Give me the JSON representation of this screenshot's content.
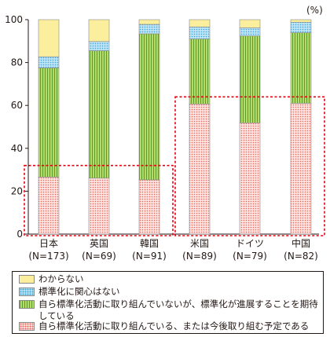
{
  "unit": "(%)",
  "legend": [
    {
      "key": "unknown",
      "label": "わからない"
    },
    {
      "key": "no_interest",
      "label": "標準化に関心はない"
    },
    {
      "key": "expect",
      "label": "自ら標準化活動に取り組んでいないが、標準化が進展することを期待している"
    },
    {
      "key": "active",
      "label": "自ら標準化活動に取り組んでいる、または今後取り組む予定である"
    }
  ],
  "colors": {
    "unknown": "#fbee9c",
    "no_interest": "#bfe4f6",
    "expect": "#b5dc6b",
    "active": "#ffe3e0",
    "dashed_highlight": "#e60012"
  },
  "chart_data": {
    "type": "bar",
    "stacked": true,
    "categories": [
      "日本",
      "英国",
      "韓国",
      "米国",
      "ドイツ",
      "中国"
    ],
    "category_sublabels": [
      "(N=173)",
      "(N=69)",
      "(N=91)",
      "(N=89)",
      "(N=79)",
      "(N=82)"
    ],
    "series": [
      {
        "name": "自ら標準化活動に取り組んでいる、または今後取り組む予定である",
        "key": "active",
        "values": [
          26.6,
          26.1,
          25.3,
          60.7,
          51.9,
          61.0
        ]
      },
      {
        "name": "自ら標準化活動に取り組んでいないが、標準化が進展することを期待している",
        "key": "expect",
        "values": [
          50.9,
          59.4,
          68.1,
          30.3,
          40.5,
          32.9
        ]
      },
      {
        "name": "標準化に関心はない",
        "key": "no_interest",
        "values": [
          5.2,
          4.3,
          4.4,
          5.6,
          3.8,
          4.9
        ]
      },
      {
        "name": "わからない",
        "key": "unknown",
        "values": [
          17.3,
          10.2,
          2.2,
          3.4,
          3.8,
          1.2
        ]
      }
    ],
    "ylim": [
      0,
      100
    ],
    "yticks": [
      0,
      20,
      40,
      60,
      80,
      100
    ],
    "xlabel": "",
    "ylabel": "",
    "highlight_groups": [
      {
        "categories": [
          "日本",
          "英国",
          "韓国"
        ],
        "ylim": [
          0,
          32
        ]
      },
      {
        "categories": [
          "米国",
          "ドイツ",
          "中国"
        ],
        "ylim": [
          0,
          64
        ]
      }
    ],
    "grid": false,
    "legend_position": "bottom"
  }
}
